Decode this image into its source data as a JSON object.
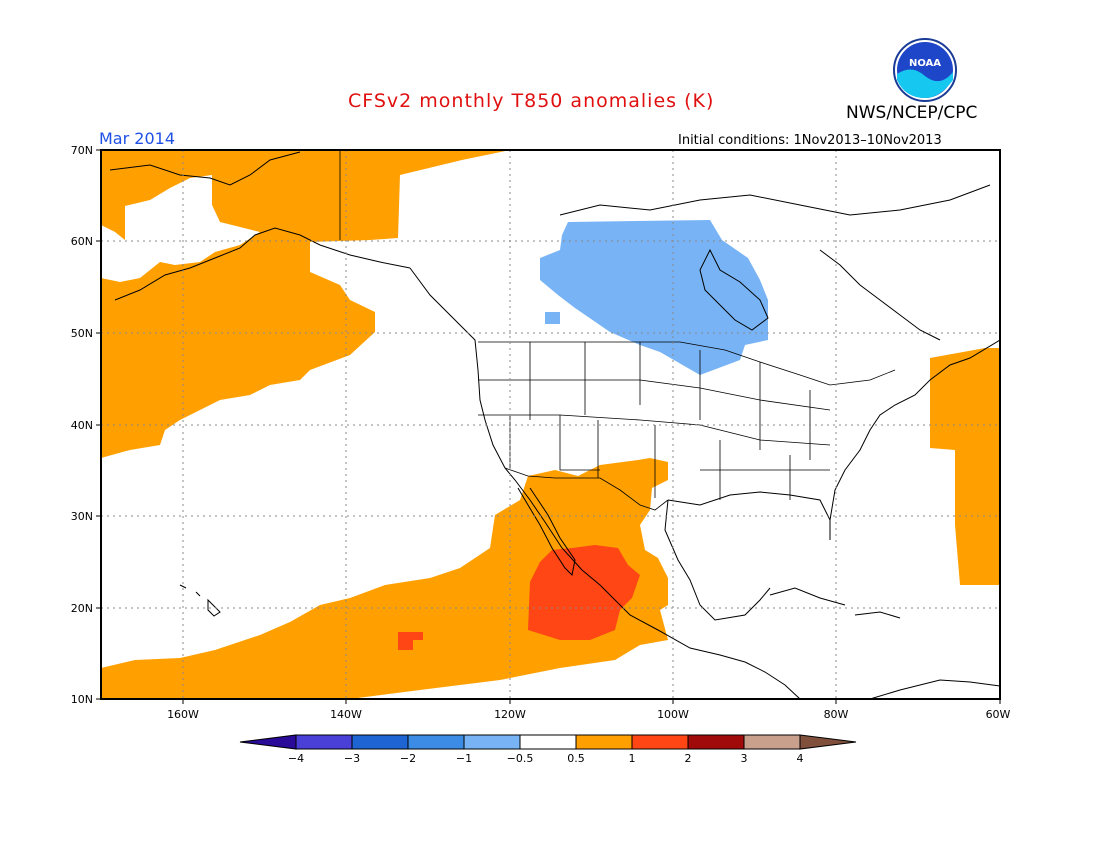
{
  "title": "CFSv2 monthly T850 anomalies (K)",
  "org": "NWS/NCEP/CPC",
  "logo_text": "NOAA",
  "valid_month": "Mar 2014",
  "initial_conditions": "Initial conditions: 1Nov2013–10Nov2013",
  "lat_labels": [
    "70N",
    "60N",
    "50N",
    "40N",
    "30N",
    "20N",
    "10N"
  ],
  "lon_labels": [
    "160W",
    "140W",
    "120W",
    "100W",
    "80W",
    "60W"
  ],
  "colorbar": {
    "labels": [
      "−4",
      "−3",
      "−2",
      "−1",
      "−0.5",
      "0.5",
      "1",
      "2",
      "3",
      "4"
    ],
    "colors": [
      "#2a0a99",
      "#4a3fd6",
      "#1e64d2",
      "#3c8ce6",
      "#78b4f5",
      "#ffffff",
      "#ffa000",
      "#ff4614",
      "#a00a0a",
      "#c8a08c",
      "#80503c"
    ]
  },
  "colors": {
    "warm_05_1": "#ffa000",
    "warm_1_2": "#ff4614",
    "cool_05_1": "#78b4f5",
    "title": "#e01010",
    "date": "#1e50e6"
  }
}
